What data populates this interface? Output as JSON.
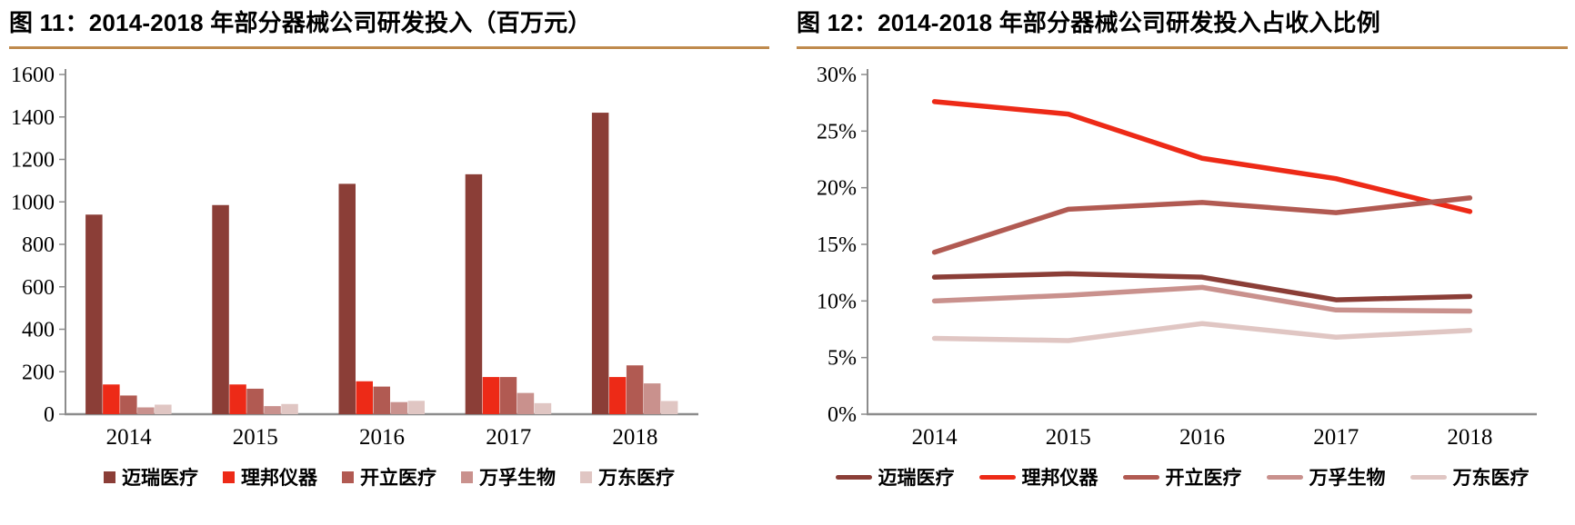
{
  "accent_rule_color": "#BF8A4D",
  "axis_color": "#8C8C8C",
  "chart_data": [
    {
      "type": "bar",
      "title": "图 11：2014-2018 年部分器械公司研发投入（百万元）",
      "categories": [
        "2014",
        "2015",
        "2016",
        "2017",
        "2018"
      ],
      "series": [
        {
          "name": "迈瑞医疗",
          "color": "#8B3E37",
          "values": [
            940,
            985,
            1085,
            1130,
            1420
          ]
        },
        {
          "name": "理邦仪器",
          "color": "#ED2A17",
          "values": [
            140,
            140,
            155,
            175,
            175
          ]
        },
        {
          "name": "开立医疗",
          "color": "#B15A52",
          "values": [
            88,
            120,
            130,
            175,
            230
          ]
        },
        {
          "name": "万孚生物",
          "color": "#C9918D",
          "values": [
            32,
            38,
            57,
            100,
            145
          ]
        },
        {
          "name": "万东医疗",
          "color": "#E0C6C3",
          "values": [
            45,
            48,
            63,
            52,
            62
          ]
        }
      ],
      "ylim": [
        0,
        1600
      ],
      "ytick_step": 200,
      "ytick_labels": [
        "0",
        "200",
        "400",
        "600",
        "800",
        "1000",
        "1200",
        "1400",
        "1600"
      ],
      "xlabel": "",
      "ylabel": "",
      "grid": false,
      "legend_position": "bottom"
    },
    {
      "type": "line",
      "title": "图 12：2014-2018 年部分器械公司研发投入占收入比例",
      "categories": [
        "2014",
        "2015",
        "2016",
        "2017",
        "2018"
      ],
      "series": [
        {
          "name": "迈瑞医疗",
          "color": "#8B3E37",
          "values": [
            12.1,
            12.4,
            12.1,
            10.1,
            10.4
          ]
        },
        {
          "name": "理邦仪器",
          "color": "#ED2A17",
          "values": [
            27.6,
            26.5,
            22.6,
            20.8,
            17.9
          ]
        },
        {
          "name": "开立医疗",
          "color": "#B15A52",
          "values": [
            14.3,
            18.1,
            18.7,
            17.8,
            19.1
          ]
        },
        {
          "name": "万孚生物",
          "color": "#C9918D",
          "values": [
            10.0,
            10.5,
            11.2,
            9.2,
            9.1
          ]
        },
        {
          "name": "万东医疗",
          "color": "#E0C6C3",
          "values": [
            6.7,
            6.5,
            8.0,
            6.8,
            7.4
          ]
        }
      ],
      "ylim": [
        0,
        30
      ],
      "ytick_step": 5,
      "ytick_labels": [
        "0%",
        "5%",
        "10%",
        "15%",
        "20%",
        "25%",
        "30%"
      ],
      "xlabel": "",
      "ylabel": "",
      "grid": false,
      "legend_position": "bottom"
    }
  ]
}
